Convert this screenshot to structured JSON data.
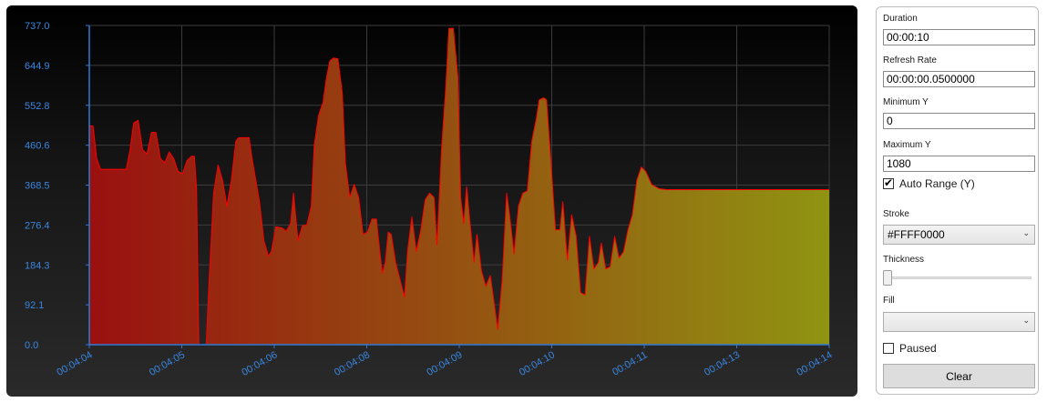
{
  "chart_data": {
    "type": "area",
    "title": "",
    "xlabel": "",
    "ylabel": "",
    "ylim": [
      0.0,
      737.0
    ],
    "y_ticks": [
      "0.0",
      "92.1",
      "184.3",
      "276.4",
      "368.5",
      "460.6",
      "552.8",
      "644.9",
      "737.0"
    ],
    "x_ticks": [
      "00:04:04",
      "00:04:05",
      "00:04:06",
      "00:04:08",
      "00:04:09",
      "00:04:10",
      "00:04:11",
      "00:04:13",
      "00:04:14"
    ],
    "x_range_seconds": [
      244.0,
      254.0
    ],
    "grid": true,
    "stroke_color": "#FFFF0000",
    "fill_gradient": [
      "#9a1010",
      "#909412"
    ],
    "series": [
      {
        "points": [
          [
            244.0,
            505
          ],
          [
            244.05,
            505
          ],
          [
            244.1,
            430
          ],
          [
            244.15,
            405
          ],
          [
            244.3,
            405
          ],
          [
            244.5,
            405
          ],
          [
            244.55,
            450
          ],
          [
            244.6,
            512
          ],
          [
            244.66,
            518
          ],
          [
            244.72,
            450
          ],
          [
            244.78,
            440
          ],
          [
            244.84,
            490
          ],
          [
            244.9,
            490
          ],
          [
            244.96,
            430
          ],
          [
            245.02,
            420
          ],
          [
            245.08,
            445
          ],
          [
            245.14,
            430
          ],
          [
            245.2,
            400
          ],
          [
            245.26,
            395
          ],
          [
            245.32,
            425
          ],
          [
            245.38,
            435
          ],
          [
            245.42,
            435
          ],
          [
            245.45,
            360
          ],
          [
            245.48,
            0
          ],
          [
            245.58,
            0
          ],
          [
            245.62,
            150
          ],
          [
            245.68,
            350
          ],
          [
            245.74,
            415
          ],
          [
            245.8,
            380
          ],
          [
            245.86,
            320
          ],
          [
            245.92,
            380
          ],
          [
            245.98,
            470
          ],
          [
            246.02,
            478
          ],
          [
            246.16,
            478
          ],
          [
            246.2,
            430
          ],
          [
            246.26,
            370
          ],
          [
            246.3,
            330
          ],
          [
            246.36,
            240
          ],
          [
            246.42,
            205
          ],
          [
            246.46,
            215
          ],
          [
            246.52,
            272
          ],
          [
            246.6,
            270
          ],
          [
            246.66,
            262
          ],
          [
            246.72,
            280
          ],
          [
            246.76,
            350
          ],
          [
            246.82,
            240
          ],
          [
            246.88,
            275
          ],
          [
            246.94,
            276
          ],
          [
            247.0,
            320
          ],
          [
            247.04,
            460
          ],
          [
            247.1,
            530
          ],
          [
            247.16,
            560
          ],
          [
            247.2,
            610
          ],
          [
            247.25,
            655
          ],
          [
            247.3,
            662
          ],
          [
            247.36,
            660
          ],
          [
            247.42,
            580
          ],
          [
            247.46,
            420
          ],
          [
            247.52,
            340
          ],
          [
            247.58,
            370
          ],
          [
            247.64,
            340
          ],
          [
            247.7,
            255
          ],
          [
            247.76,
            260
          ],
          [
            247.82,
            290
          ],
          [
            247.88,
            290
          ],
          [
            247.92,
            225
          ],
          [
            247.96,
            165
          ],
          [
            248.0,
            190
          ],
          [
            248.04,
            260
          ],
          [
            248.08,
            255
          ],
          [
            248.14,
            190
          ],
          [
            248.2,
            150
          ],
          [
            248.26,
            110
          ],
          [
            248.3,
            215
          ],
          [
            248.36,
            295
          ],
          [
            248.42,
            215
          ],
          [
            248.48,
            265
          ],
          [
            248.54,
            335
          ],
          [
            248.6,
            350
          ],
          [
            248.66,
            340
          ],
          [
            248.7,
            230
          ],
          [
            248.76,
            450
          ],
          [
            248.82,
            600
          ],
          [
            248.86,
            730
          ],
          [
            248.92,
            730
          ],
          [
            248.98,
            620
          ],
          [
            249.02,
            340
          ],
          [
            249.06,
            280
          ],
          [
            249.1,
            365
          ],
          [
            249.14,
            290
          ],
          [
            249.2,
            190
          ],
          [
            249.24,
            255
          ],
          [
            249.3,
            170
          ],
          [
            249.36,
            135
          ],
          [
            249.42,
            160
          ],
          [
            249.46,
            110
          ],
          [
            249.52,
            35
          ],
          [
            249.58,
            150
          ],
          [
            249.64,
            350
          ],
          [
            249.68,
            300
          ],
          [
            249.74,
            210
          ],
          [
            249.8,
            320
          ],
          [
            249.86,
            350
          ],
          [
            249.92,
            355
          ],
          [
            249.98,
            470
          ],
          [
            250.04,
            520
          ],
          [
            250.08,
            565
          ],
          [
            250.14,
            570
          ],
          [
            250.18,
            565
          ],
          [
            250.24,
            420
          ],
          [
            250.3,
            265
          ],
          [
            250.36,
            265
          ],
          [
            250.4,
            330
          ],
          [
            250.46,
            195
          ],
          [
            250.52,
            300
          ],
          [
            250.58,
            250
          ],
          [
            250.64,
            120
          ],
          [
            250.7,
            115
          ],
          [
            250.76,
            250
          ],
          [
            250.82,
            175
          ],
          [
            250.88,
            190
          ],
          [
            250.92,
            235
          ],
          [
            250.98,
            175
          ],
          [
            251.04,
            180
          ],
          [
            251.1,
            250
          ],
          [
            251.16,
            200
          ],
          [
            251.22,
            215
          ],
          [
            251.28,
            265
          ],
          [
            251.34,
            300
          ],
          [
            251.4,
            380
          ],
          [
            251.46,
            410
          ],
          [
            251.52,
            400
          ],
          [
            251.6,
            370
          ],
          [
            251.7,
            360
          ],
          [
            251.8,
            358
          ],
          [
            252.0,
            358
          ],
          [
            254.0,
            358
          ]
        ]
      }
    ]
  },
  "sidebar": {
    "duration_label": "Duration",
    "duration_value": "00:00:10",
    "refresh_label": "Refresh Rate",
    "refresh_value": "00:00:00.0500000",
    "min_y_label": "Minimum Y",
    "min_y_value": "0",
    "max_y_label": "Maximum Y",
    "max_y_value": "1080",
    "auto_range_label": "Auto Range (Y)",
    "auto_range_checked": true,
    "stroke_label": "Stroke",
    "stroke_value": "#FFFF0000",
    "thickness_label": "Thickness",
    "thickness_level": 0,
    "fill_label": "Fill",
    "fill_value": "",
    "paused_label": "Paused",
    "paused_checked": false,
    "clear_label": "Clear"
  },
  "icons": {
    "dropdown": "chevron-down-icon",
    "check": "checkmark-icon"
  }
}
